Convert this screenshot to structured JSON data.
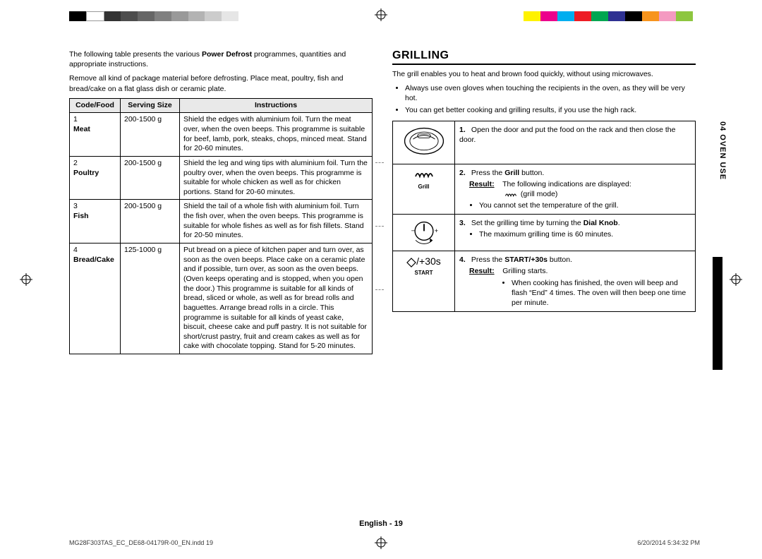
{
  "colorbar_left": [
    "#000000",
    "#ffffff",
    "#333333",
    "#4d4d4d",
    "#666666",
    "#808080",
    "#999999",
    "#b3b3b3",
    "#cccccc",
    "#e6e6e6"
  ],
  "colorbar_right": [
    "#fff200",
    "#ec008c",
    "#00aeef",
    "#ed1c24",
    "#00a651",
    "#2e3192",
    "#000000",
    "#f7941d",
    "#f49ac1",
    "#8dc63f"
  ],
  "intro1": "The following table presents the various ",
  "intro1_bold": "Power Defrost",
  "intro1_tail": " programmes, quantities and appropriate instructions.",
  "intro2": "Remove all kind of package material before defrosting. Place meat, poultry, fish and bread/cake on a flat glass dish or ceramic plate.",
  "table": {
    "headers": [
      "Code/Food",
      "Serving Size",
      "Instructions"
    ],
    "rows": [
      {
        "code": "1",
        "food": "Meat",
        "size": "200-1500 g",
        "instr": "Shield the edges with aluminium foil. Turn the meat over, when the oven beeps. This programme is suitable for beef, lamb, pork, steaks, chops, minced meat. Stand for 20-60 minutes."
      },
      {
        "code": "2",
        "food": "Poultry",
        "size": "200-1500 g",
        "instr": "Shield the leg and wing tips with aluminium foil. Turn the poultry over, when the oven beeps. This programme is suitable for whole chicken as well as for chicken portions. Stand for 20-60 minutes."
      },
      {
        "code": "3",
        "food": "Fish",
        "size": "200-1500 g",
        "instr": "Shield the tail of a whole fish with aluminium foil. Turn the fish over, when the oven beeps. This programme is suitable for whole fishes as well as for fish fillets. Stand for 20-50 minutes."
      },
      {
        "code": "4",
        "food": "Bread/Cake",
        "size": "125-1000 g",
        "instr": "Put bread on a piece of kitchen paper and turn over, as soon as the oven beeps. Place cake on a ceramic plate and if possible, turn over, as soon as the oven beeps. (Oven keeps operating and is stopped, when you open the door.) This programme is suitable for all kinds of bread, sliced or whole, as well as for bread rolls and baguettes. Arrange bread rolls in a circle. This programme is suitable for all kinds of yeast cake, biscuit, cheese cake and puff pastry. It is not suitable for short/crust pastry, fruit and cream cakes as well as for cake with chocolate topping. Stand for 5-20 minutes."
      }
    ]
  },
  "grilling_title": "GRILLING",
  "grilling_intro": "The grill enables you to heat and brown food quickly, without using microwaves.",
  "grilling_bullets": [
    "Always use oven gloves when touching the recipients in the oven, as they will be very hot.",
    "You can get better cooking and grilling results, if you use the high rack."
  ],
  "steps": [
    {
      "num": "1.",
      "text": "Open the door and put the food on the rack and then close the door."
    },
    {
      "num": "2.",
      "pre": "Press the ",
      "bold": "Grill",
      "post": " button.",
      "result_label": "Result:",
      "result_text": "The following indications are displayed:",
      "result_sub": "(grill mode)",
      "bullets": [
        "You cannot set the temperature of the grill."
      ],
      "icon": "grill"
    },
    {
      "num": "3.",
      "pre": "Set the grilling time by turning the ",
      "bold": "Dial Knob",
      "post": ".",
      "bullets": [
        "The maximum grilling time is 60 minutes."
      ],
      "icon": "dial"
    },
    {
      "num": "4.",
      "pre": "Press the ",
      "bold": "START/+30s",
      "post": " button.",
      "result_label": "Result:",
      "result_text": "Grilling starts.",
      "bullets": [
        "When cooking has finished, the oven will beep and flash “End” 4 times. The oven will then beep one time per minute."
      ],
      "icon": "start"
    }
  ],
  "side_tab": "04  OVEN USE",
  "footer_center_lang": "English",
  "footer_center_page": " - 19",
  "footer_left": "MG28F303TAS_EC_DE68-04179R-00_EN.indd   19",
  "footer_right": "6/20/2014   5:34:32 PM",
  "grill_icon_label": "Grill",
  "start_icon_label": "START",
  "start_icon_text": "/+30s",
  "grill_symbol": "⤢⤢"
}
